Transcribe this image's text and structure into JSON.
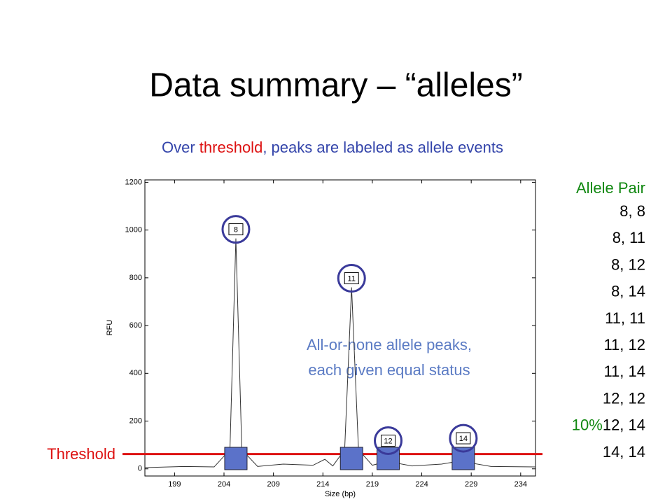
{
  "title": "Data summary – “alleles”",
  "subtitle": [
    {
      "text": "Over ",
      "color": "#3344aa"
    },
    {
      "text": "threshold",
      "color": "#dd1111"
    },
    {
      "text": ", peaks are labeled as allele events",
      "color": "#3344aa"
    }
  ],
  "allele_pairs": {
    "header": "Allele Pair",
    "items": [
      "8,   8",
      "8, 11",
      "8, 12",
      "8, 14",
      "11, 11",
      "11, 12",
      "11, 14",
      "12, 12",
      "12, 14",
      "14, 14"
    ],
    "note": "10%"
  },
  "annotation": [
    "All-or-none allele peaks,",
    "each given equal status"
  ],
  "threshold_label": "Threshold",
  "chart_data": {
    "type": "line",
    "xlabel": "Size (bp)",
    "ylabel": "RFU",
    "xlim": [
      196,
      235.5
    ],
    "ylim": [
      -30,
      1210
    ],
    "xticks": [
      199,
      204,
      209,
      214,
      219,
      224,
      229,
      234
    ],
    "yticks": [
      0,
      200,
      400,
      600,
      800,
      1000,
      1200
    ],
    "threshold": 62,
    "threshold_color": "#dd1111",
    "series": [
      {
        "color": "#333333",
        "x": [
          196,
          200,
          203,
          204.6,
          205.2,
          205.8,
          207.4,
          210,
          213,
          214.2,
          215,
          216.2,
          216.9,
          217.6,
          219,
          219.9,
          220.6,
          221.3,
          223,
          226,
          227.5,
          228.2,
          228.9,
          231,
          235.5
        ],
        "values": [
          5,
          10,
          8,
          80,
          965,
          80,
          10,
          20,
          15,
          40,
          12,
          80,
          760,
          80,
          15,
          25,
          80,
          25,
          12,
          20,
          30,
          90,
          25,
          10,
          8
        ]
      }
    ],
    "alleles": [
      {
        "label": "8",
        "x": 205.2,
        "y": 965
      },
      {
        "label": "11",
        "x": 216.9,
        "y": 760
      },
      {
        "label": "12",
        "x": 220.6,
        "y": 80
      },
      {
        "label": "14",
        "x": 228.2,
        "y": 90
      }
    ],
    "allele_color": "#5b72c9",
    "circle_color": "#3a3a9a"
  }
}
